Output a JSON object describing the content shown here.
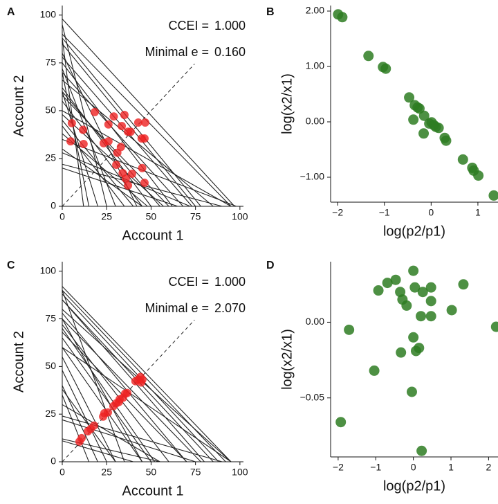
{
  "chart_data": [
    {
      "type": "budget",
      "panel": "A",
      "xlabel": "Account 1",
      "ylabel": "Account 2",
      "annotations": [
        {
          "label": "CCEI =",
          "value": "1.000"
        },
        {
          "label": "Minimal e =",
          "value": "0.160"
        }
      ],
      "xlim": [
        0,
        102
      ],
      "ylim": [
        0,
        105
      ],
      "xticks": [
        0,
        25,
        50,
        75,
        100
      ],
      "yticks": [
        0,
        25,
        50,
        75,
        100
      ],
      "line_color": "#222222",
      "color": "#ee2222",
      "budget_lines": {
        "x_intercepts": [
          97,
          95,
          78,
          75,
          73,
          62,
          68,
          85,
          50,
          60,
          55,
          45,
          95,
          57,
          40,
          35,
          48,
          98,
          45,
          12,
          15,
          30,
          25,
          90,
          65,
          72,
          42,
          20
        ],
        "y_intercepts": [
          98,
          90,
          88,
          85,
          78,
          75,
          70,
          66,
          62,
          58,
          60,
          55,
          50,
          48,
          45,
          42,
          38,
          35,
          30,
          88,
          70,
          72,
          95,
          22,
          20,
          28,
          80,
          60
        ]
      },
      "x": [
        5.4,
        4.7,
        11.7,
        12,
        18.3,
        23.3,
        26,
        26,
        29,
        30.4,
        31,
        33,
        33.5,
        34,
        35,
        35.8,
        37,
        37,
        38.5,
        39.3,
        42.8,
        44.7,
        45,
        46.3,
        46.7,
        46.3
      ],
      "y": [
        43.5,
        34,
        40,
        32.6,
        49.3,
        33,
        34,
        42.8,
        47,
        21.7,
        28,
        31,
        42,
        17.4,
        47.8,
        14.5,
        39,
        10.9,
        39,
        17,
        43.8,
        35.5,
        20,
        12.3,
        43.8,
        35.5
      ]
    },
    {
      "type": "scatter",
      "panel": "B",
      "xlabel": "log(p2/p1)",
      "ylabel": "log(x2/x1)",
      "color": "#2e7d22",
      "xlim": [
        -2.15,
        1.43
      ],
      "ylim": [
        -1.45,
        2.1
      ],
      "xticks": [
        {
          "value": -2,
          "label": "−2"
        },
        {
          "value": -1,
          "label": "−1"
        },
        0,
        1
      ],
      "yticks": [
        {
          "value": -1,
          "label": "−1.00"
        },
        {
          "value": 0,
          "label": "0.00"
        },
        {
          "value": 1,
          "label": "1.00"
        },
        {
          "value": 2,
          "label": "2.00"
        }
      ],
      "x": [
        -1.99,
        -1.9,
        -1.34,
        -1.03,
        -0.97,
        -0.47,
        -0.35,
        -0.29,
        -0.25,
        -0.38,
        -0.15,
        -0.04,
        0.01,
        0.06,
        0.1,
        0.16,
        -0.16,
        0.29,
        0.32,
        0.68,
        0.88,
        0.91,
        1.01,
        1.34
      ],
      "y": [
        1.94,
        1.89,
        1.19,
        0.99,
        0.96,
        0.44,
        0.3,
        0.26,
        0.24,
        0.04,
        0.11,
        -0.03,
        -0.01,
        -0.06,
        -0.09,
        -0.11,
        -0.21,
        -0.29,
        -0.34,
        -0.68,
        -0.83,
        -0.88,
        -0.97,
        -1.33
      ]
    },
    {
      "type": "budget",
      "panel": "C",
      "xlabel": "Account 1",
      "ylabel": "Account 2",
      "annotations": [
        {
          "label": "CCEI =",
          "value": "1.000"
        },
        {
          "label": "Minimal e =",
          "value": "2.070"
        }
      ],
      "xlim": [
        0,
        102
      ],
      "ylim": [
        0,
        105
      ],
      "xticks": [
        0,
        25,
        50,
        75,
        100
      ],
      "yticks": [
        0,
        25,
        50,
        75,
        100
      ],
      "line_color": "#222222",
      "color": "#ee2222",
      "budget_lines": {
        "x_intercepts": [
          95,
          92,
          88,
          85,
          80,
          78,
          70,
          60,
          52,
          50,
          45,
          30,
          25,
          20,
          15,
          30,
          55,
          90,
          75,
          55,
          40,
          95,
          70,
          45,
          35,
          95
        ],
        "y_intercepts": [
          92,
          90,
          88,
          85,
          85,
          75,
          78,
          72,
          70,
          65,
          60,
          55,
          48,
          40,
          35,
          38,
          30,
          24,
          22,
          12,
          11,
          80,
          68,
          75,
          90,
          60
        ]
      },
      "x": [
        9.7,
        10.9,
        14.4,
        16,
        17.9,
        23,
        23.7,
        25.7,
        28.8,
        30.4,
        31.9,
        32.3,
        34.2,
        35.4,
        36.6,
        41.2,
        42.8,
        44,
        45.1,
        44.4
      ],
      "y": [
        10.6,
        12.4,
        16,
        17.2,
        19,
        23.7,
        25.5,
        25.9,
        29.2,
        30.7,
        31.4,
        32.8,
        33.6,
        35.8,
        36.1,
        42.3,
        43.1,
        44.5,
        43.1,
        41.6
      ]
    },
    {
      "type": "scatter",
      "panel": "D",
      "xlabel": "log(p2/p1)",
      "ylabel": "log(x2/x1)",
      "color": "#2e7d22",
      "xlim": [
        -2.2,
        2.25
      ],
      "ylim": [
        -0.089,
        0.04
      ],
      "xticks": [
        {
          "value": -2,
          "label": "−2"
        },
        {
          "value": -1,
          "label": "−1"
        },
        0,
        1,
        2
      ],
      "yticks": [
        {
          "value": -0.05,
          "label": "−0.05"
        },
        {
          "value": 0,
          "label": "0.00"
        }
      ],
      "x": [
        -1.93,
        -1.71,
        -1.04,
        -0.93,
        -0.69,
        -0.47,
        -0.35,
        -0.29,
        -0.18,
        -0.33,
        0,
        0.04,
        0,
        0.07,
        0.15,
        -0.04,
        0.25,
        0.2,
        0.47,
        0.47,
        0.47,
        0.22,
        1.02,
        1.33,
        2.2
      ],
      "y": [
        -0.066,
        -0.005,
        -0.032,
        0.021,
        0.026,
        0.028,
        0.02,
        0.015,
        0.011,
        -0.02,
        0.034,
        0.023,
        -0.01,
        -0.019,
        -0.017,
        -0.046,
        0.02,
        0.004,
        0.014,
        0.023,
        0.004,
        -0.085,
        0.008,
        0.025,
        -0.003
      ]
    }
  ]
}
